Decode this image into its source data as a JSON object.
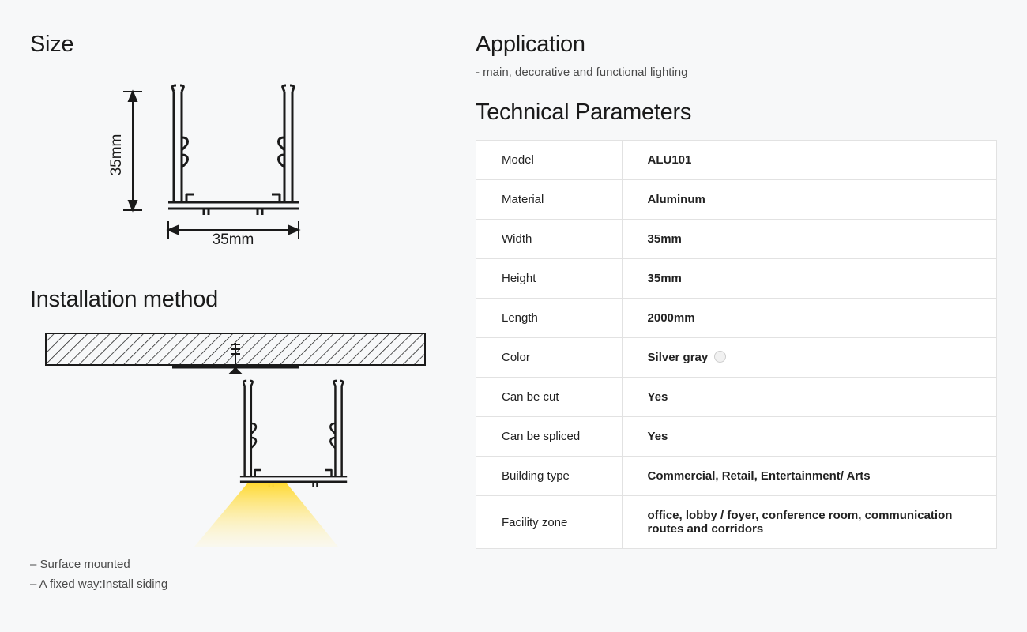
{
  "size": {
    "title": "Size",
    "width_label": "35mm",
    "height_label": "35mm",
    "profile_color": "#1a1a1a",
    "dim_line_color": "#1a1a1a"
  },
  "installation": {
    "title": "Installation method",
    "note1": "– Surface mounted",
    "note2": "– A fixed way:Install siding",
    "ceiling_fill": "#ffffff",
    "hatch_color": "#1a1a1a",
    "profile_color": "#1a1a1a",
    "light_top_color": "#ffd933",
    "light_bottom_color": "#fff8d6"
  },
  "application": {
    "title": "Application",
    "note": "- main, decorative and functional lighting"
  },
  "tech": {
    "title": "Technical Parameters",
    "rows": [
      {
        "k": "Model",
        "v": "ALU101"
      },
      {
        "k": "Material",
        "v": "Aluminum"
      },
      {
        "k": "Width",
        "v": "35mm"
      },
      {
        "k": "Height",
        "v": "35mm"
      },
      {
        "k": "Length",
        "v": "2000mm"
      },
      {
        "k": "Color",
        "v": "Silver gray",
        "swatch": "#f1f1f1"
      },
      {
        "k": "Can be cut",
        "v": "Yes"
      },
      {
        "k": "Can be spliced",
        "v": "Yes"
      },
      {
        "k": "Building type",
        "v": "Commercial, Retail, Entertainment/ Arts"
      },
      {
        "k": "Facility zone",
        "v": "office, lobby / foyer, conference room, communication routes and corridors"
      }
    ],
    "border_color": "#e2e2e2",
    "row_bg": "#ffffff",
    "key_fontweight": 400,
    "val_fontweight": 700,
    "fontsize": 15
  },
  "page": {
    "background": "#f7f8f9",
    "text_color": "#1a1a1a"
  }
}
